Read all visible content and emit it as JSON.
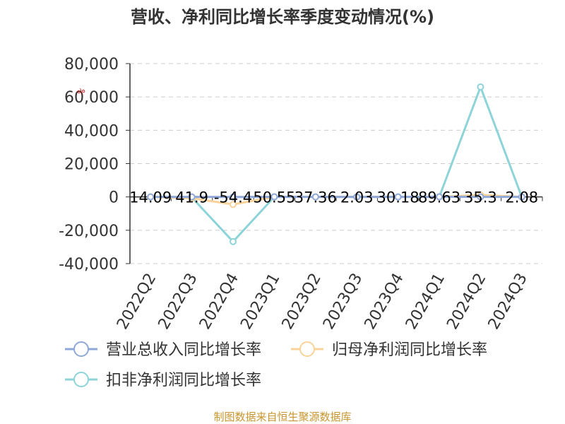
{
  "chart_data": {
    "type": "line",
    "title": "营收、净利同比增长率季度变动情况(%)",
    "unit_label": "%",
    "categories": [
      "2022Q2",
      "2022Q3",
      "2022Q4",
      "2023Q1",
      "2023Q2",
      "2023Q3",
      "2023Q4",
      "2024Q1",
      "2024Q2",
      "2024Q3"
    ],
    "ylim": [
      -40000,
      80000
    ],
    "yticks": [
      80000,
      60000,
      40000,
      20000,
      0,
      -20000,
      -40000
    ],
    "ytick_labels": [
      "80,000",
      "60,000",
      "40,000",
      "20,000",
      "0",
      "-20,000",
      "-40,000"
    ],
    "grid": true,
    "legend_position": "bottom",
    "series": [
      {
        "name": "营业总收入同比增长率",
        "color": "#8fa8d8",
        "values": [
          14.09,
          41.9,
          -54.4,
          50.55,
          37.36,
          2.03,
          30.18,
          89.63,
          35.3,
          2.08
        ]
      },
      {
        "name": "归母净利润同比增长率",
        "color": "#f8d49a",
        "values": [
          0,
          -800,
          -4500,
          0,
          0,
          0,
          0,
          0,
          1200,
          0
        ]
      },
      {
        "name": "扣非净利润同比增长率",
        "color": "#8dd4d8",
        "values": [
          0,
          -300,
          -26800,
          0,
          0,
          0,
          0,
          0,
          66000,
          0
        ]
      }
    ],
    "data_labels": [
      "14.09",
      "41.9",
      "-54.4",
      "50.55",
      "37.36",
      "2.03",
      "30.18",
      "89.63",
      "35.3",
      "2.08"
    ]
  },
  "source": "制图数据来自恒生聚源数据库"
}
